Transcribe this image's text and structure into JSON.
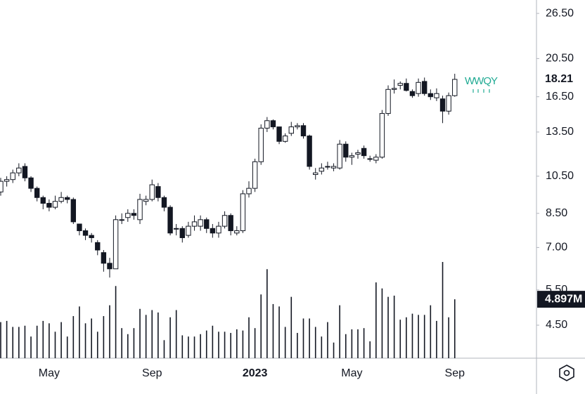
{
  "chart_data": {
    "type": "candlestick",
    "symbol": "WWQY",
    "log_scale": true,
    "categories": [
      null,
      null,
      null,
      null,
      null,
      null,
      null,
      null,
      "May",
      null,
      null,
      null,
      null,
      null,
      null,
      null,
      null,
      null,
      null,
      null,
      null,
      null,
      null,
      null,
      null,
      "Sep",
      null,
      null,
      null,
      null,
      null,
      null,
      null,
      null,
      null,
      null,
      null,
      null,
      null,
      null,
      null,
      null,
      "2023",
      null,
      null,
      null,
      null,
      null,
      null,
      null,
      null,
      null,
      null,
      null,
      null,
      null,
      null,
      null,
      "May",
      null,
      null,
      null,
      null,
      null,
      null,
      null,
      null,
      null,
      null,
      null,
      null,
      null,
      null,
      null,
      null,
      "Sep"
    ],
    "open": [
      9.6,
      10.2,
      10.3,
      10.7,
      11.1,
      10.4,
      9.8,
      9.3,
      9.0,
      8.8,
      9.1,
      9.3,
      9.2,
      8.0,
      7.7,
      7.5,
      7.2,
      6.8,
      6.4,
      6.2,
      8.2,
      8.3,
      8.5,
      8.2,
      9.1,
      9.2,
      9.9,
      9.3,
      8.8,
      7.8,
      7.8,
      7.5,
      7.9,
      7.9,
      8.2,
      7.8,
      7.6,
      7.9,
      8.4,
      7.6,
      7.7,
      9.5,
      9.8,
      11.4,
      13.8,
      14.4,
      13.9,
      12.8,
      13.4,
      13.9,
      14.0,
      13.2,
      10.6,
      10.8,
      11.1,
      11.0,
      11.0,
      12.6,
      11.7,
      11.9,
      12.3,
      11.6,
      11.5,
      11.7,
      15.0,
      17.2,
      17.6,
      17.8,
      17.0,
      16.8,
      18.0,
      16.8,
      16.4,
      16.3,
      15.2,
      16.6
    ],
    "high": [
      10.4,
      10.5,
      10.9,
      11.3,
      11.3,
      10.5,
      9.9,
      9.4,
      9.2,
      9.4,
      9.6,
      9.4,
      9.3,
      8.0,
      7.8,
      7.6,
      7.3,
      6.9,
      6.6,
      8.4,
      8.5,
      8.7,
      8.7,
      9.5,
      9.4,
      10.3,
      10.1,
      9.4,
      8.9,
      8.0,
      7.9,
      8.1,
      8.4,
      8.4,
      8.3,
      8.0,
      8.1,
      8.6,
      8.5,
      7.9,
      9.7,
      10.2,
      11.6,
      14.1,
      14.7,
      14.5,
      13.9,
      13.4,
      14.3,
      14.2,
      14.2,
      13.3,
      11.0,
      11.3,
      11.4,
      11.3,
      12.9,
      12.8,
      12.0,
      12.2,
      12.5,
      11.8,
      11.9,
      15.3,
      17.6,
      18.2,
      18.0,
      18.3,
      17.2,
      18.3,
      18.4,
      17.2,
      17.3,
      16.6,
      16.9,
      18.8
    ],
    "low": [
      9.4,
      9.9,
      10.1,
      10.5,
      10.2,
      9.6,
      9.1,
      8.7,
      8.6,
      8.7,
      9.0,
      9.0,
      8.0,
      7.5,
      7.3,
      7.2,
      6.7,
      6.1,
      5.9,
      6.2,
      8.0,
      8.1,
      8.2,
      8.0,
      8.9,
      9.1,
      9.1,
      8.6,
      7.5,
      7.5,
      7.2,
      7.4,
      7.7,
      7.7,
      7.6,
      7.4,
      7.4,
      7.8,
      7.5,
      7.5,
      7.6,
      9.3,
      9.6,
      11.2,
      13.5,
      13.7,
      12.6,
      12.7,
      13.2,
      13.7,
      13.0,
      10.9,
      10.3,
      10.6,
      10.9,
      10.8,
      10.9,
      11.4,
      11.2,
      11.6,
      11.6,
      11.4,
      11.3,
      11.6,
      14.8,
      16.8,
      17.2,
      17.0,
      16.4,
      16.5,
      16.6,
      16.2,
      16.1,
      14.2,
      14.9,
      16.5
    ],
    "close": [
      10.2,
      10.3,
      10.7,
      11.0,
      10.4,
      9.8,
      9.3,
      9.0,
      8.8,
      9.1,
      9.3,
      9.2,
      8.1,
      7.7,
      7.5,
      7.4,
      6.9,
      6.4,
      6.2,
      8.2,
      8.2,
      8.5,
      8.4,
      9.2,
      9.2,
      10.0,
      9.3,
      8.8,
      7.6,
      7.8,
      7.4,
      7.9,
      8.1,
      8.2,
      7.8,
      7.6,
      7.9,
      8.4,
      7.7,
      7.7,
      9.5,
      9.8,
      11.4,
      13.8,
      14.4,
      13.9,
      12.8,
      13.2,
      13.9,
      14.0,
      13.2,
      11.1,
      10.7,
      11.0,
      11.1,
      11.1,
      12.6,
      11.7,
      11.8,
      12.0,
      11.8,
      11.6,
      11.7,
      15.0,
      17.2,
      17.3,
      17.8,
      17.1,
      16.6,
      17.9,
      16.8,
      16.5,
      16.8,
      15.2,
      16.6,
      18.21
    ],
    "volume": {
      "values": [
        3.0,
        3.1,
        2.6,
        2.6,
        2.7,
        1.8,
        2.7,
        3.1,
        2.9,
        2.2,
        3.0,
        1.8,
        3.5,
        4.3,
        2.9,
        3.3,
        2.2,
        3.5,
        4.4,
        6.0,
        2.5,
        2.0,
        2.5,
        4.1,
        3.6,
        4.0,
        3.8,
        1.5,
        3.4,
        4.0,
        1.9,
        1.8,
        1.8,
        2.0,
        2.3,
        2.7,
        2.2,
        2.2,
        2.1,
        2.4,
        2.3,
        3.4,
        2.5,
        5.3,
        7.4,
        4.5,
        4.3,
        2.6,
        5.1,
        2.1,
        3.3,
        3.3,
        2.6,
        1.8,
        3.0,
        1.3,
        4.4,
        2.0,
        2.4,
        2.4,
        2.5,
        1.4,
        6.3,
        5.8,
        5.1,
        5.2,
        3.2,
        3.4,
        3.7,
        3.6,
        3.6,
        4.4,
        3.1,
        8.0,
        3.4,
        4.897
      ],
      "last_label": "4.897M"
    },
    "ylim": [
      3.73,
      28.6
    ],
    "yticks": [
      {
        "value": 26.5,
        "label": "26.50"
      },
      {
        "value": 20.5,
        "label": "20.50"
      },
      {
        "value": 16.5,
        "label": "16.50"
      },
      {
        "value": 13.5,
        "label": "13.50"
      },
      {
        "value": 10.5,
        "label": "10.50"
      },
      {
        "value": 8.5,
        "label": "8.50"
      },
      {
        "value": 7.0,
        "label": "7.00"
      },
      {
        "value": 5.5,
        "label": "5.50"
      },
      {
        "value": 4.5,
        "label": "4.50"
      }
    ]
  }
}
